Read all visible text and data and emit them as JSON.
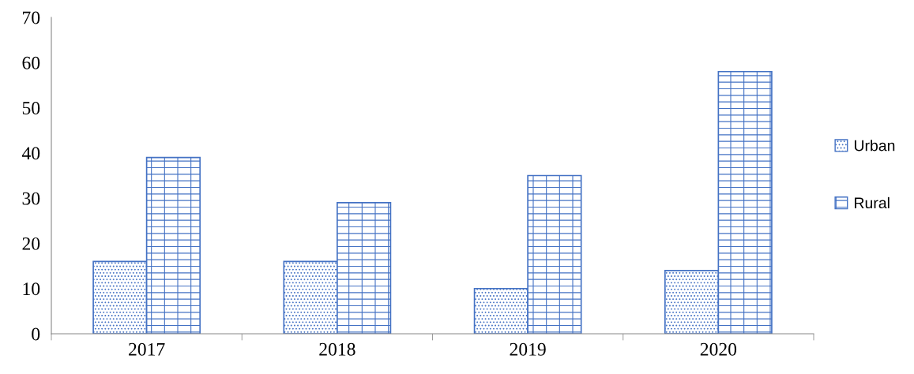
{
  "chart_data": {
    "type": "bar",
    "categories": [
      "2017",
      "2018",
      "2019",
      "2020"
    ],
    "series": [
      {
        "name": "Urban",
        "color": "#4472c4",
        "values": [
          16,
          16,
          10,
          14
        ]
      },
      {
        "name": "Rural",
        "color": "#4472c4",
        "values": [
          39,
          29,
          35,
          58
        ]
      }
    ],
    "ylim": [
      0,
      70
    ],
    "yticks": [
      0,
      10,
      20,
      30,
      40,
      50,
      60,
      70
    ],
    "grid": false,
    "legend": "right"
  }
}
